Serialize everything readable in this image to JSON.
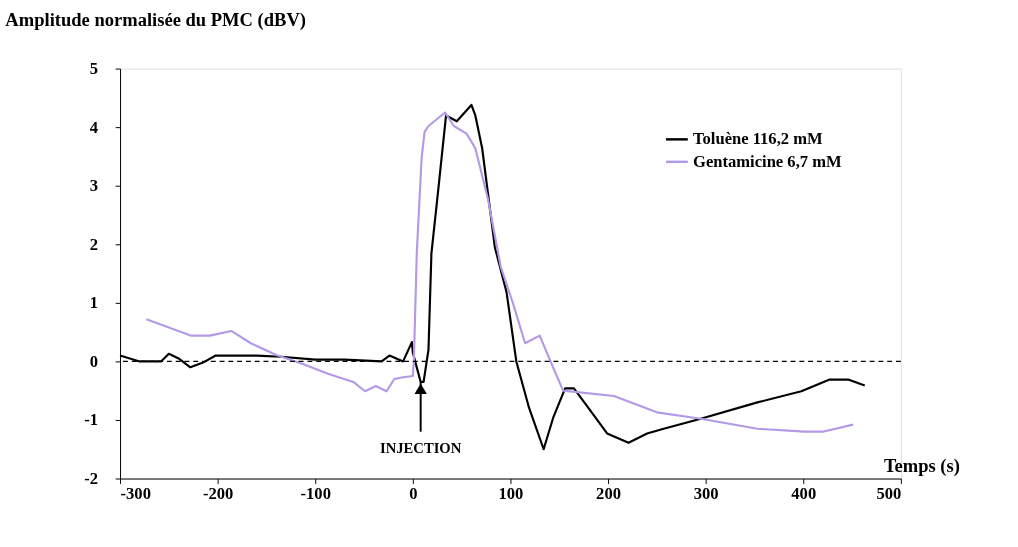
{
  "chart_data": {
    "type": "line",
    "ylabel": "Amplitude normalisée du PMC (dBV)",
    "xlabel": "Temps (s)",
    "xlim": [
      -300,
      500
    ],
    "xticks": [
      -300,
      -200,
      -100,
      0,
      100,
      200,
      300,
      400,
      500
    ],
    "ylim": [
      -2,
      5
    ],
    "yticks": [
      -2,
      -1,
      0,
      1,
      2,
      3,
      4,
      5
    ],
    "grid": false,
    "legend": "top right",
    "marker": "none",
    "line_style": "solid",
    "series": [
      {
        "name": "Toluène 116,2 mM",
        "color": "#000000",
        "x": [
          -300,
          -280,
          -258,
          -250,
          -240,
          -228,
          -215,
          -202,
          -160,
          -135,
          -100,
          -70,
          -32,
          -24,
          -10,
          -1,
          0,
          8,
          11,
          16,
          19,
          26,
          34,
          45,
          60,
          64,
          71,
          84,
          96,
          106,
          119,
          134,
          144,
          156,
          165,
          177,
          199,
          221,
          240,
          257,
          295,
          353,
          398,
          427,
          446,
          463
        ],
        "values": [
          0.1,
          0.0,
          0.0,
          0.13,
          0.05,
          -0.1,
          -0.02,
          0.1,
          0.1,
          0.08,
          0.03,
          0.03,
          0.0,
          0.1,
          0.0,
          0.33,
          0.15,
          -0.35,
          -0.35,
          0.2,
          1.84,
          2.93,
          4.2,
          4.1,
          4.38,
          4.2,
          3.64,
          1.95,
          1.18,
          0.0,
          -0.79,
          -1.5,
          -0.95,
          -0.46,
          -0.46,
          -0.73,
          -1.23,
          -1.39,
          -1.23,
          -1.15,
          -0.98,
          -0.7,
          -0.51,
          -0.31,
          -0.31,
          -0.41
        ]
      },
      {
        "name": "Gentamicine 6,7 mM",
        "color": "#b399e6",
        "x": [
          -273,
          -227,
          -208,
          -186,
          -166,
          -140,
          -112,
          -87,
          -61,
          -49,
          -38,
          -27,
          -19,
          -10,
          0,
          1,
          4,
          9,
          12,
          16,
          33,
          42,
          55,
          64,
          77,
          90,
          103,
          115,
          130,
          141,
          154,
          206,
          250,
          295,
          353,
          401,
          420,
          451
        ],
        "values": [
          0.72,
          0.44,
          0.44,
          0.52,
          0.31,
          0.11,
          -0.05,
          -0.21,
          -0.35,
          -0.51,
          -0.42,
          -0.51,
          -0.3,
          -0.27,
          -0.25,
          0.0,
          1.84,
          3.48,
          3.92,
          4.02,
          4.25,
          4.02,
          3.89,
          3.64,
          2.77,
          1.62,
          0.97,
          0.31,
          0.44,
          0.0,
          -0.5,
          -0.59,
          -0.87,
          -0.98,
          -1.15,
          -1.2,
          -1.2,
          -1.08
        ]
      }
    ],
    "ref_lines": [
      {
        "axis": "y",
        "value": 0,
        "color": "#000000",
        "line_style": "dashed"
      }
    ],
    "annotations": [
      {
        "text": "INJECTION",
        "x": 8,
        "y": -0.35
      }
    ]
  }
}
